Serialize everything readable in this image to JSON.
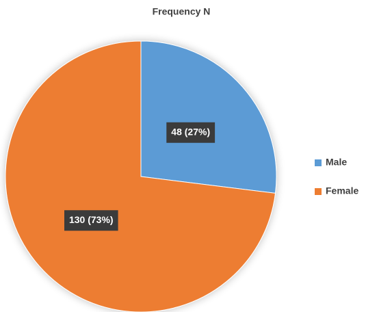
{
  "chart_data": {
    "type": "pie",
    "title": "Frequency N",
    "categories": [
      "Male",
      "Female"
    ],
    "values": [
      48,
      130
    ],
    "value_labels": [
      "48 (27%)",
      "130 (73%)"
    ],
    "colors": [
      "#5b9bd5",
      "#ed7d31"
    ],
    "legend": "right"
  }
}
